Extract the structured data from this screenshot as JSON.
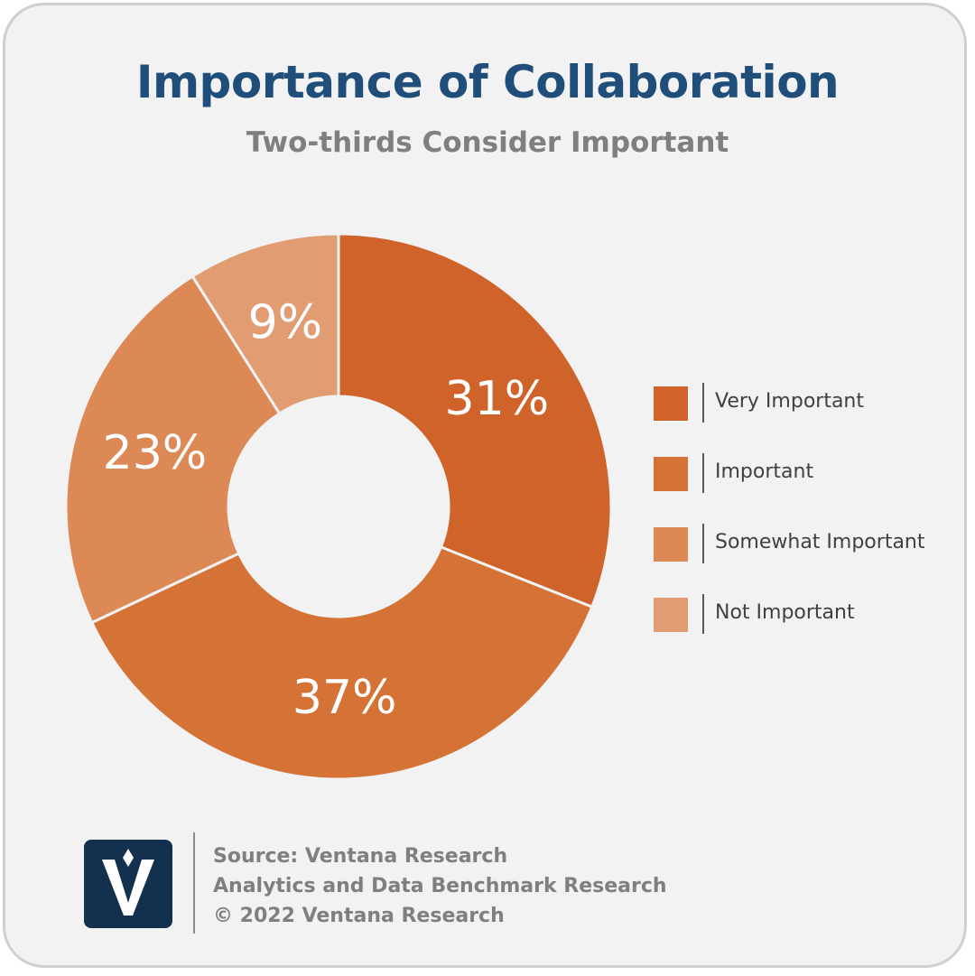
{
  "chart_data": {
    "type": "pie",
    "title": "Importance of Collaboration",
    "subtitle": "Two-thirds Consider Important",
    "donut": true,
    "categories": [
      "Very Important",
      "Important",
      "Somewhat Important",
      "Not Important"
    ],
    "values": [
      31,
      37,
      23,
      9
    ],
    "value_labels": [
      "31%",
      "37%",
      "23%",
      "9%"
    ],
    "colors": [
      "#cf6329",
      "#d57337",
      "#dc8956",
      "#e29c72"
    ],
    "legend_position": "right"
  },
  "footer": {
    "source": "Source: Ventana Research",
    "study": "Analytics and Data Benchmark Research",
    "copyright": "© 2022 Ventana Research",
    "logo_color": "#13314f"
  }
}
